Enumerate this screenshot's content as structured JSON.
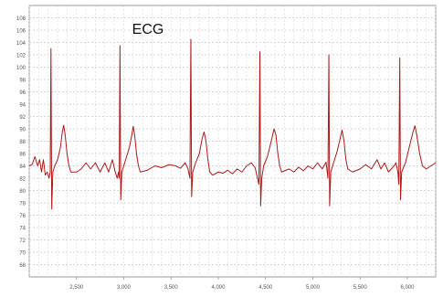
{
  "chart_data": {
    "type": "line",
    "title": "ECG",
    "xlabel": "",
    "ylabel": "",
    "xlim": [
      2000,
      6300
    ],
    "ylim": [
      66,
      110
    ],
    "xticks": [
      2500,
      3000,
      3500,
      4000,
      4500,
      5000,
      5500,
      6000
    ],
    "xtick_labels": [
      "2,500",
      "3,000",
      "3,500",
      "4,000",
      "4,500",
      "5,000",
      "5,500",
      "6,000"
    ],
    "yticks": [
      68,
      70,
      72,
      74,
      76,
      78,
      80,
      82,
      84,
      86,
      88,
      90,
      92,
      94,
      96,
      98,
      100,
      102,
      104,
      106,
      108
    ],
    "ytick_labels": [
      "68",
      "70",
      "72",
      "74",
      "76",
      "78",
      "80",
      "82",
      "84",
      "86",
      "88",
      "90",
      "92",
      "94",
      "96",
      "98",
      "100",
      "102",
      "104",
      "106",
      "108"
    ],
    "grid": true,
    "line_color": "#b01818",
    "beat_peaks_x": [
      2230,
      2960,
      3710,
      4440,
      5170,
      5920
    ],
    "series": [
      {
        "values": [
          [
            2000,
            84
          ],
          [
            2030,
            84.2
          ],
          [
            2060,
            85.5
          ],
          [
            2090,
            84
          ],
          [
            2110,
            85
          ],
          [
            2130,
            83
          ],
          [
            2150,
            85
          ],
          [
            2170,
            82.5
          ],
          [
            2190,
            83
          ],
          [
            2210,
            82
          ],
          [
            2222,
            83
          ],
          [
            2230,
            103
          ],
          [
            2238,
            77
          ],
          [
            2250,
            83
          ],
          [
            2270,
            84
          ],
          [
            2300,
            85
          ],
          [
            2330,
            87
          ],
          [
            2350,
            89.5
          ],
          [
            2365,
            90.6
          ],
          [
            2380,
            89
          ],
          [
            2400,
            86
          ],
          [
            2420,
            84
          ],
          [
            2440,
            83
          ],
          [
            2500,
            83
          ],
          [
            2550,
            83.5
          ],
          [
            2600,
            84.5
          ],
          [
            2650,
            83.5
          ],
          [
            2700,
            84.5
          ],
          [
            2750,
            83
          ],
          [
            2800,
            84.5
          ],
          [
            2840,
            83
          ],
          [
            2880,
            85
          ],
          [
            2910,
            83
          ],
          [
            2930,
            82
          ],
          [
            2945,
            83
          ],
          [
            2952,
            82
          ],
          [
            2960,
            103.5
          ],
          [
            2968,
            78.5
          ],
          [
            2980,
            83
          ],
          [
            3000,
            84
          ],
          [
            3030,
            85.5
          ],
          [
            3060,
            87
          ],
          [
            3085,
            89
          ],
          [
            3100,
            90.4
          ],
          [
            3115,
            89
          ],
          [
            3135,
            86
          ],
          [
            3155,
            84
          ],
          [
            3175,
            83
          ],
          [
            3250,
            83.3
          ],
          [
            3330,
            84
          ],
          [
            3400,
            83.7
          ],
          [
            3480,
            84.2
          ],
          [
            3550,
            84
          ],
          [
            3600,
            83.6
          ],
          [
            3650,
            84.5
          ],
          [
            3680,
            83.5
          ],
          [
            3700,
            82
          ],
          [
            3710,
            104.5
          ],
          [
            3718,
            79
          ],
          [
            3730,
            83
          ],
          [
            3760,
            84.5
          ],
          [
            3800,
            86
          ],
          [
            3830,
            88.5
          ],
          [
            3850,
            89.5
          ],
          [
            3870,
            88
          ],
          [
            3890,
            85
          ],
          [
            3910,
            83
          ],
          [
            3940,
            82.5
          ],
          [
            4000,
            83
          ],
          [
            4050,
            82.8
          ],
          [
            4100,
            83.3
          ],
          [
            4150,
            82.7
          ],
          [
            4200,
            83.5
          ],
          [
            4250,
            83
          ],
          [
            4300,
            84
          ],
          [
            4350,
            84.5
          ],
          [
            4390,
            83.7
          ],
          [
            4415,
            82
          ],
          [
            4430,
            81
          ],
          [
            4440,
            102.5
          ],
          [
            4448,
            77.5
          ],
          [
            4460,
            82
          ],
          [
            4480,
            84
          ],
          [
            4520,
            85.5
          ],
          [
            4560,
            88
          ],
          [
            4590,
            90
          ],
          [
            4610,
            89
          ],
          [
            4630,
            86
          ],
          [
            4650,
            84
          ],
          [
            4670,
            83
          ],
          [
            4750,
            83.5
          ],
          [
            4800,
            83
          ],
          [
            4850,
            83.8
          ],
          [
            4900,
            83.2
          ],
          [
            4950,
            84
          ],
          [
            5000,
            83.5
          ],
          [
            5050,
            84.5
          ],
          [
            5100,
            83.5
          ],
          [
            5140,
            84.6
          ],
          [
            5160,
            82
          ],
          [
            5170,
            102
          ],
          [
            5178,
            77.5
          ],
          [
            5190,
            83
          ],
          [
            5220,
            84.5
          ],
          [
            5260,
            86.5
          ],
          [
            5290,
            88.5
          ],
          [
            5310,
            89.8
          ],
          [
            5330,
            88
          ],
          [
            5350,
            85
          ],
          [
            5370,
            83.5
          ],
          [
            5420,
            83
          ],
          [
            5500,
            83.5
          ],
          [
            5560,
            84.2
          ],
          [
            5620,
            83.5
          ],
          [
            5680,
            85
          ],
          [
            5720,
            83.5
          ],
          [
            5760,
            84.5
          ],
          [
            5800,
            83
          ],
          [
            5860,
            84
          ],
          [
            5880,
            84.5
          ],
          [
            5900,
            83
          ],
          [
            5910,
            81
          ],
          [
            5920,
            101.5
          ],
          [
            5928,
            78.5
          ],
          [
            5940,
            83
          ],
          [
            5980,
            84.5
          ],
          [
            6020,
            87
          ],
          [
            6060,
            89.5
          ],
          [
            6080,
            90.5
          ],
          [
            6100,
            89
          ],
          [
            6130,
            86
          ],
          [
            6160,
            84
          ],
          [
            6200,
            83.5
          ],
          [
            6250,
            84
          ],
          [
            6300,
            84.5
          ]
        ]
      }
    ]
  }
}
